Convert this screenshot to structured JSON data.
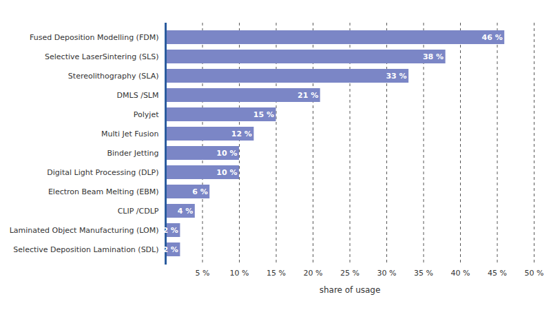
{
  "chart_data": {
    "type": "bar",
    "orientation": "horizontal",
    "categories": [
      "Fused Deposition Modelling (FDM)",
      "Selective LaserSintering (SLS)",
      "Stereolithography (SLA)",
      "DMLS /SLM",
      "Polyjet",
      "Multi Jet Fusion",
      "Binder Jetting",
      "Digital Light Processing (DLP)",
      "Electron Beam Melting (EBM)",
      "CLIP /CDLP",
      "Laminated Object Manufacturing (LOM)",
      "Selective Deposition Lamination (SDL)"
    ],
    "values": [
      46,
      38,
      33,
      21,
      15,
      12,
      10,
      10,
      6,
      4,
      2,
      2
    ],
    "value_labels": [
      "46 %",
      "38 %",
      "33 %",
      "21 %",
      "15 %",
      "12 %",
      "10 %",
      "10 %",
      "6 %",
      "4 %",
      "2 %",
      "2 %"
    ],
    "data_labels": true,
    "color": "#7b86c6",
    "x_label": "share of usage",
    "xlim": [
      0,
      50
    ],
    "xticks": [
      {
        "value": 5,
        "label": "5 %"
      },
      {
        "value": 10,
        "label": "10 %"
      },
      {
        "value": 15,
        "label": "15 %"
      },
      {
        "value": 20,
        "label": "20 %"
      },
      {
        "value": 25,
        "label": "25 %"
      },
      {
        "value": 30,
        "label": "30 %"
      },
      {
        "value": 35,
        "label": "35 %"
      },
      {
        "value": 40,
        "label": "40 %"
      },
      {
        "value": 45,
        "label": "45 %"
      },
      {
        "value": 50,
        "label": "50 %"
      }
    ],
    "grid": true
  }
}
